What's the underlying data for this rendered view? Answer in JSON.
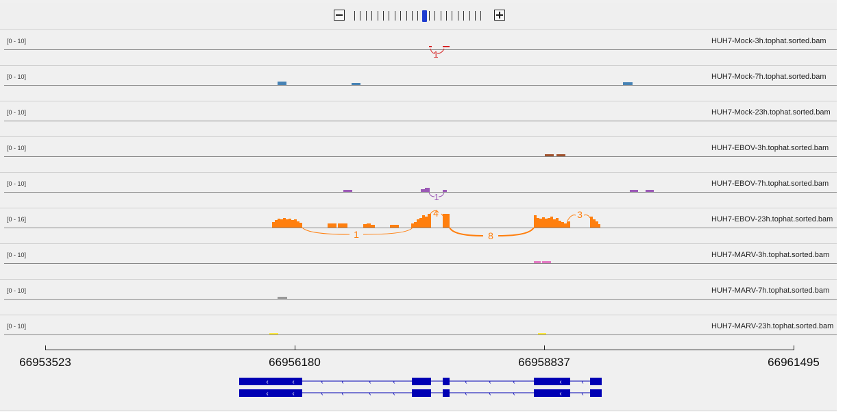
{
  "zoom": {
    "minus_icon": "minus-icon",
    "plus_icon": "plus-icon",
    "ticks": 23,
    "active_index": 12
  },
  "tracks": [
    {
      "range": "[0 - 10]",
      "name": "HUH7-Mock-3h.tophat.sorted.bam",
      "color": "#d62728"
    },
    {
      "range": "[0 - 10]",
      "name": "HUH7-Mock-7h.tophat.sorted.bam",
      "color": "#4682b4"
    },
    {
      "range": "[0 - 10]",
      "name": "HUH7-Mock-23h.tophat.sorted.bam",
      "color": "#888888"
    },
    {
      "range": "[0 - 10]",
      "name": "HUH7-EBOV-3h.tophat.sorted.bam",
      "color": "#a0522d"
    },
    {
      "range": "[0 - 10]",
      "name": "HUH7-EBOV-7h.tophat.sorted.bam",
      "color": "#9b59b6"
    },
    {
      "range": "[0 - 16]",
      "name": "HUH7-EBOV-23h.tophat.sorted.bam",
      "color": "#ff7f0e"
    },
    {
      "range": "[0 - 10]",
      "name": "HUH7-MARV-3h.tophat.sorted.bam",
      "color": "#e377c2"
    },
    {
      "range": "[0 - 10]",
      "name": "HUH7-MARV-7h.tophat.sorted.bam",
      "color": "#999999"
    },
    {
      "range": "[0 - 10]",
      "name": "HUH7-MARV-23h.tophat.sorted.bam",
      "color": "#ffeb3b"
    }
  ],
  "junctions": {
    "mock3h": [
      "1"
    ],
    "ebov7h": [
      "1"
    ],
    "ebov23h": [
      "4",
      "3",
      "1",
      "8"
    ]
  },
  "ruler": {
    "labels": [
      "66953523",
      "66956180",
      "66958837",
      "66961495"
    ]
  },
  "gene": {
    "color": "#0000b4",
    "strand_glyph": "‹"
  }
}
